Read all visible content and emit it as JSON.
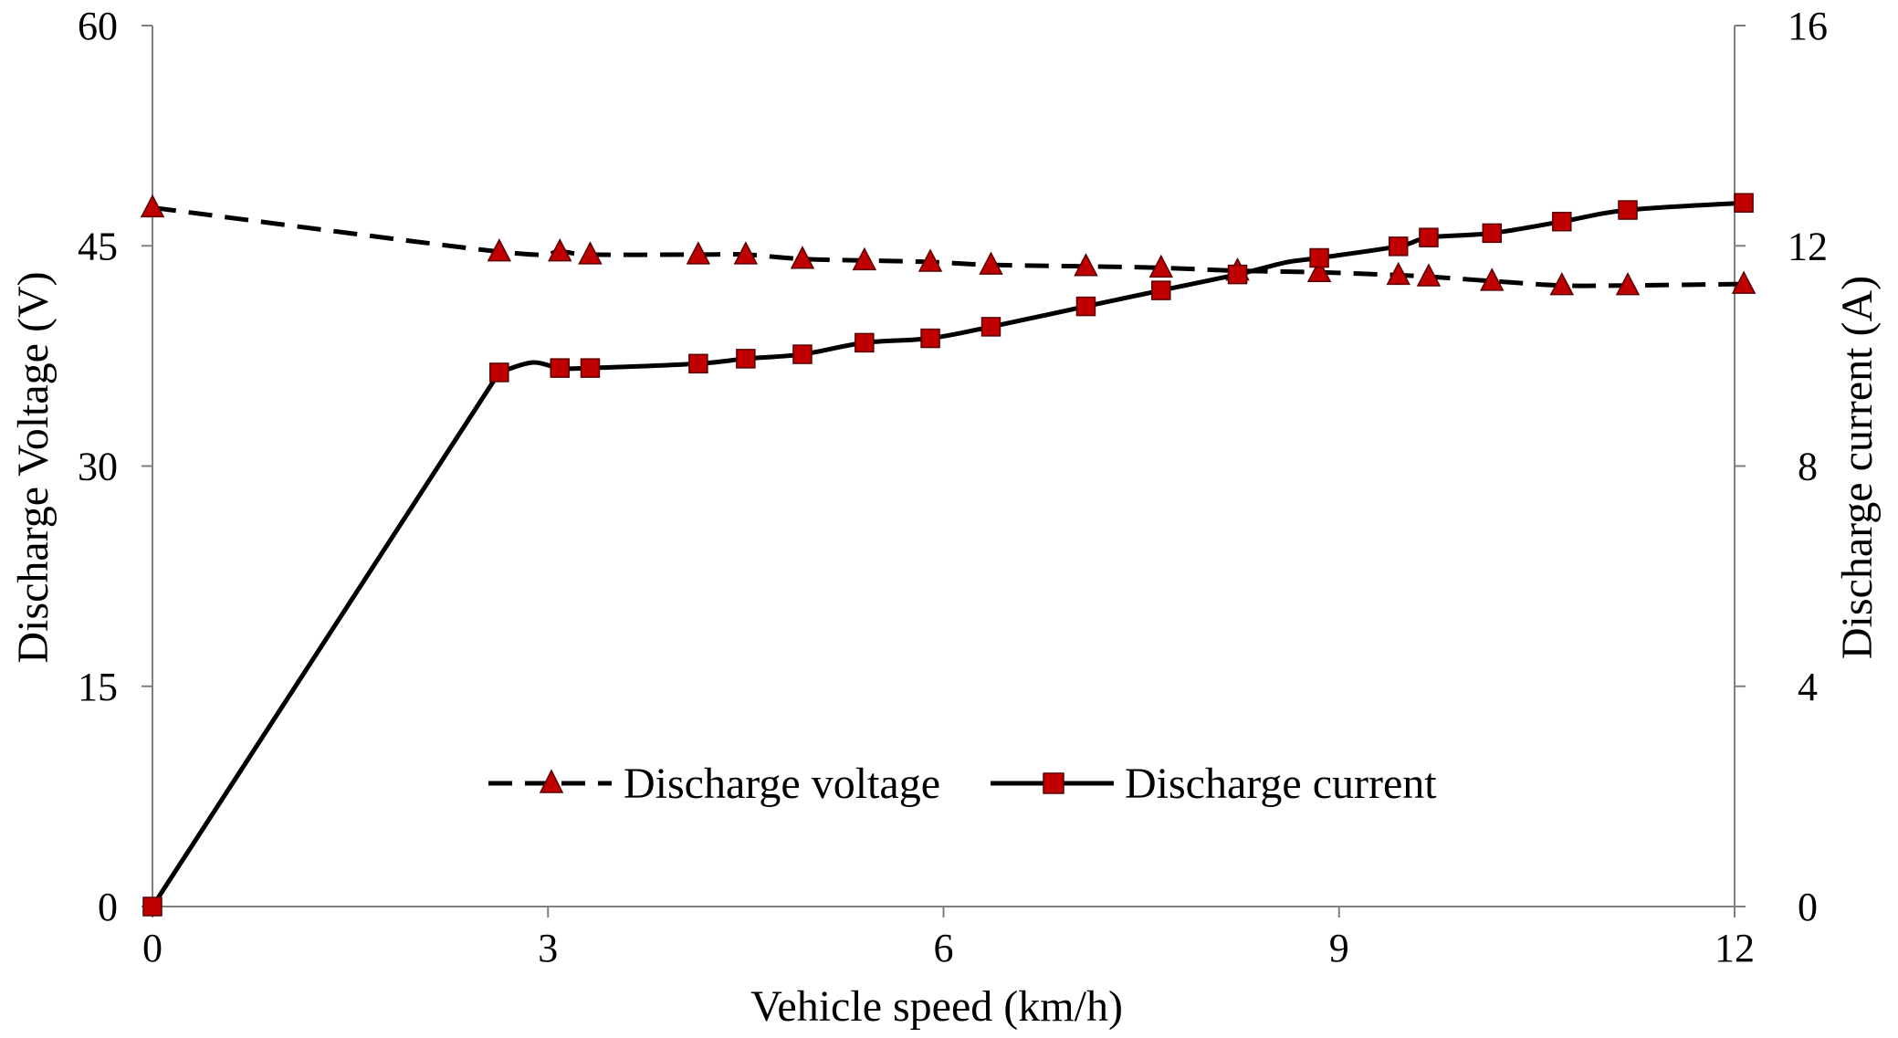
{
  "chart_data": {
    "type": "line",
    "title": "",
    "xlabel": "Vehicle speed (km/h)",
    "ylabel": "Discharge Voltage (V)",
    "ylabel_right": "Discharge current (A)",
    "xlim": [
      0,
      12
    ],
    "ylim": [
      0,
      60
    ],
    "ylim_right": [
      0,
      16
    ],
    "x_ticks": [
      0,
      3,
      6,
      9,
      12
    ],
    "y_ticks": [
      0,
      15,
      30,
      45,
      60
    ],
    "y_ticks_right": [
      0,
      4,
      8,
      12,
      16
    ],
    "grid": false,
    "legend_position": "center",
    "series": [
      {
        "name": "Discharge voltage",
        "axis": "left",
        "line_style": "dashed",
        "marker": "triangle",
        "marker_color": "#c00000",
        "line_color": "#000000",
        "x": [
          0,
          2.63,
          3.09,
          3.32,
          4.14,
          4.5,
          4.93,
          5.4,
          5.9,
          6.36,
          7.08,
          7.65,
          8.23,
          8.85,
          9.45,
          9.68,
          10.16,
          10.69,
          11.19,
          12.07
        ],
        "values": [
          47.6,
          44.6,
          44.6,
          44.4,
          44.4,
          44.4,
          44.1,
          44.0,
          43.9,
          43.7,
          43.6,
          43.5,
          43.3,
          43.2,
          43.0,
          42.9,
          42.6,
          42.3,
          42.3,
          42.4
        ]
      },
      {
        "name": "Discharge current",
        "axis": "right",
        "line_style": "solid",
        "marker": "square",
        "marker_color": "#c00000",
        "line_color": "#000000",
        "x": [
          0,
          2.63,
          3.09,
          3.32,
          4.14,
          4.5,
          4.93,
          5.4,
          5.9,
          6.36,
          7.08,
          7.65,
          8.23,
          8.85,
          9.45,
          9.68,
          10.16,
          10.69,
          11.19,
          12.07
        ],
        "values": [
          0,
          9.7,
          9.78,
          9.78,
          9.86,
          9.95,
          10.03,
          10.24,
          10.32,
          10.53,
          10.9,
          11.19,
          11.48,
          11.78,
          11.99,
          12.15,
          12.23,
          12.44,
          12.65,
          12.78
        ],
        "extra_curve_points": [
          {
            "x": 2.88,
            "y": 9.88
          },
          {
            "x": 8.6,
            "y": 11.7
          }
        ]
      }
    ]
  }
}
